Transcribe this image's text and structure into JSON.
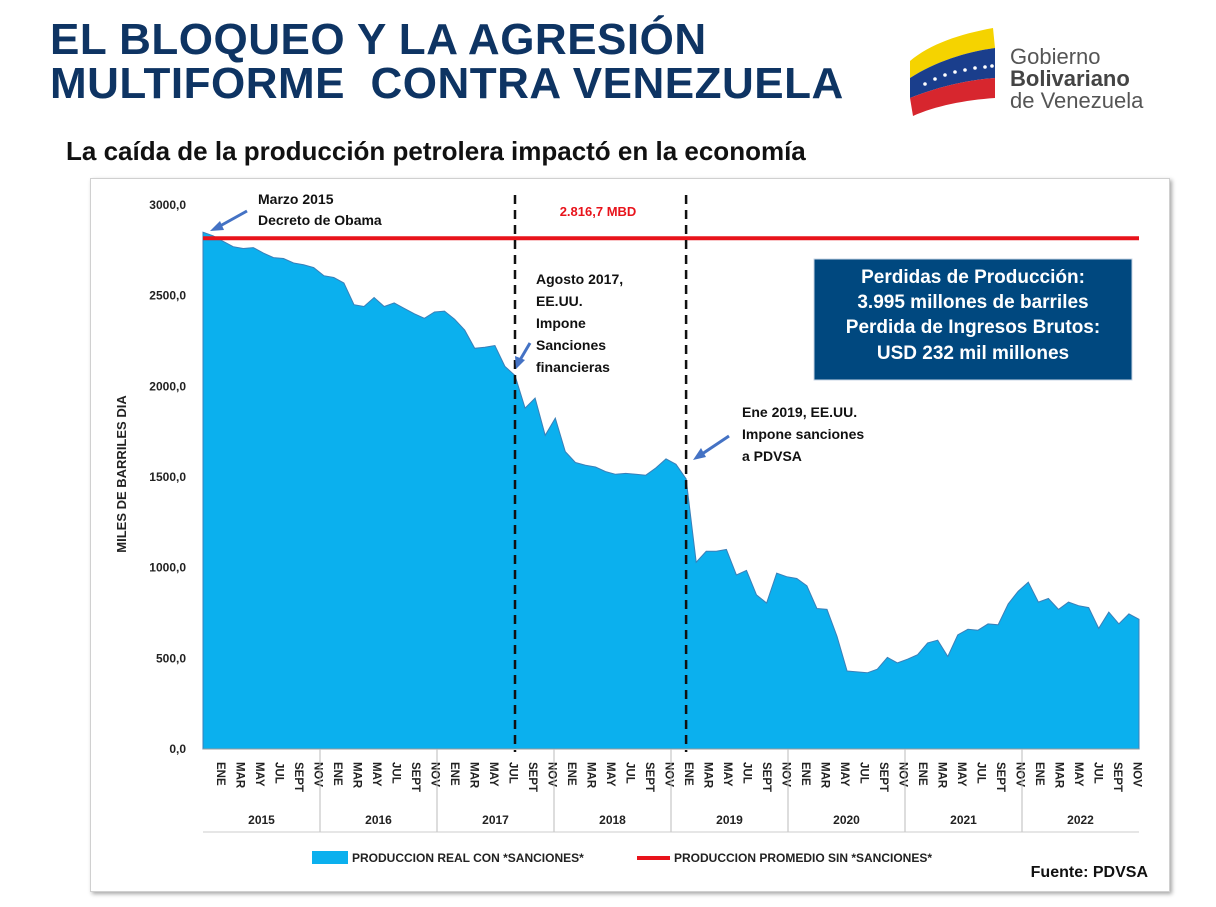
{
  "header": {
    "title_line1": "EL BLOQUEO Y LA AGRESIÓN",
    "title_line2": "MULTIFORME  CONTRA VENEZUELA",
    "subtitle": "La caída de la producción petrolera impactó en la economía"
  },
  "logo": {
    "line1": "Gobierno",
    "line2": "Bolivariano",
    "line3": "de Venezuela",
    "colors": {
      "yellow": "#f5d300",
      "blue": "#1a3e8c",
      "red": "#d7262e"
    }
  },
  "chart_data": {
    "type": "area",
    "ylabel": "MILES DE BARRILES DIA",
    "ylim": [
      0,
      3000
    ],
    "yticks": [
      "0,0",
      "500,0",
      "1000,0",
      "1500,0",
      "2000,0",
      "2500,0",
      "3000,0"
    ],
    "month_labels": [
      "ENE",
      "MAR",
      "MAY",
      "JUL",
      "SEPT",
      "NOV"
    ],
    "years": [
      "2015",
      "2016",
      "2017",
      "2018",
      "2019",
      "2020",
      "2021",
      "2022"
    ],
    "series": [
      {
        "name": "PRODUCCION REAL CON *SANCIONES*",
        "color": "#0bb0ee",
        "values": [
          2850,
          2830,
          2800,
          2770,
          2760,
          2765,
          2735,
          2710,
          2705,
          2680,
          2670,
          2655,
          2610,
          2600,
          2570,
          2450,
          2440,
          2490,
          2440,
          2460,
          2430,
          2400,
          2375,
          2410,
          2415,
          2370,
          2310,
          2210,
          2215,
          2225,
          2110,
          2060,
          1880,
          1935,
          1730,
          1825,
          1640,
          1580,
          1565,
          1555,
          1530,
          1515,
          1520,
          1515,
          1510,
          1550,
          1600,
          1570,
          1490,
          1030,
          1090,
          1090,
          1100,
          960,
          985,
          850,
          805,
          970,
          950,
          940,
          900,
          775,
          770,
          620,
          430,
          425,
          420,
          440,
          505,
          475,
          495,
          520,
          585,
          600,
          510,
          630,
          660,
          655,
          690,
          685,
          800,
          870,
          920,
          810,
          830,
          770,
          810,
          790,
          780,
          665,
          755,
          690,
          745,
          715
        ]
      },
      {
        "name": "PRODUCCION PROMEDIO SIN *SANCIONES*",
        "color": "#e8131b",
        "value": 2816.7,
        "label": "2.816,7 MBD"
      }
    ],
    "markers": [
      {
        "index": 31,
        "label_lines": [
          "Agosto 2017,",
          "EE.UU.",
          "Impone",
          "Sanciones",
          "financieras"
        ]
      },
      {
        "index": 48,
        "label_lines": [
          "Ene 2019, EE.UU.",
          "Impone sanciones",
          "a PDVSA"
        ]
      }
    ],
    "annotations": {
      "obama": [
        "Marzo 2015",
        "Decreto de Obama"
      ],
      "info_box": [
        "Perdidas de Producción:",
        "3.995 millones de barriles",
        "Perdida de Ingresos Brutos:",
        "USD 232 mil millones"
      ],
      "info_box_color": "#00487f",
      "source": "Fuente: PDVSA"
    },
    "legend_position": "bottom",
    "grid": false
  }
}
